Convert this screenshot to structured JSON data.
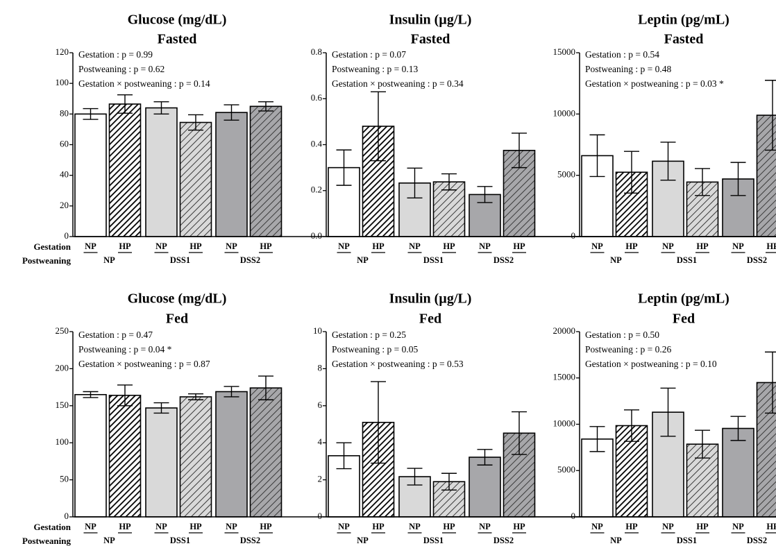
{
  "chart_data": [
    {
      "type": "bar",
      "title": "Glucose (mg/dL)",
      "subtitle": "Fasted",
      "annotations": [
        "Gestation : p = 0.99",
        "Postweaning : p = 0.62",
        "Gestation × postweaning : p = 0.14"
      ],
      "row_labels": [
        "Gestation",
        "Postweaning"
      ],
      "categories": [
        "NP",
        "HP",
        "NP",
        "HP",
        "NP",
        "HP"
      ],
      "groups": [
        "NP",
        "DSS1",
        "DSS2"
      ],
      "values": [
        80,
        86.5,
        84,
        74.5,
        81,
        85
      ],
      "errors": [
        3.5,
        6,
        4,
        5,
        5,
        3
      ],
      "colors": [
        "#ffffff",
        "#000000",
        "#d9d9d9",
        "#d9d9d9",
        "#a7a7aa",
        "#a7a7aa"
      ],
      "hatched": [
        false,
        true,
        false,
        true,
        false,
        true
      ],
      "ylim": [
        0,
        120
      ],
      "yticks": [
        0,
        20,
        40,
        60,
        80,
        100,
        120
      ]
    },
    {
      "type": "bar",
      "title": "Insulin (µg/L)",
      "subtitle": "Fasted",
      "annotations": [
        "Gestation : p = 0.07",
        "Postweaning : p = 0.13",
        "Gestation × postweaning : p = 0.34"
      ],
      "categories": [
        "NP",
        "HP",
        "NP",
        "HP",
        "NP",
        "HP"
      ],
      "groups": [
        "NP",
        "DSS1",
        "DSS2"
      ],
      "values": [
        0.3,
        0.48,
        0.233,
        0.238,
        0.183,
        0.375
      ],
      "errors": [
        0.077,
        0.15,
        0.065,
        0.035,
        0.035,
        0.075
      ],
      "colors": [
        "#ffffff",
        "#000000",
        "#d9d9d9",
        "#d9d9d9",
        "#a7a7aa",
        "#a7a7aa"
      ],
      "hatched": [
        false,
        true,
        false,
        true,
        false,
        true
      ],
      "ylim": [
        0,
        0.8
      ],
      "yticks": [
        {
          "value": 0,
          "label": "0.0"
        },
        0.2,
        0.4,
        0.6,
        0.8
      ]
    },
    {
      "type": "bar",
      "title": "Leptin (pg/mL)",
      "subtitle": "Fasted",
      "annotations": [
        "Gestation : p = 0.54",
        "Postweaning : p = 0.48",
        "Gestation × postweaning : p = 0.03 *"
      ],
      "categories": [
        "NP",
        "HP",
        "NP",
        "HP",
        "NP",
        "HP"
      ],
      "groups": [
        "NP",
        "DSS1",
        "DSS2"
      ],
      "values": [
        6600,
        5250,
        6150,
        4450,
        4700,
        9900
      ],
      "errors": [
        1700,
        1700,
        1550,
        1100,
        1350,
        2850
      ],
      "colors": [
        "#ffffff",
        "#000000",
        "#d9d9d9",
        "#d9d9d9",
        "#a7a7aa",
        "#a7a7aa"
      ],
      "hatched": [
        false,
        true,
        false,
        true,
        false,
        true
      ],
      "ylim": [
        0,
        15000
      ],
      "yticks": [
        0,
        5000,
        10000,
        15000
      ]
    },
    {
      "type": "bar",
      "title": "Glucose (mg/dL)",
      "subtitle": "Fed",
      "annotations": [
        "Gestation : p = 0.47",
        "Postweaning : p = 0.04 *",
        "Gestation × postweaning : p = 0.87"
      ],
      "row_labels": [
        "Gestation",
        "Postweaning"
      ],
      "categories": [
        "NP",
        "HP",
        "NP",
        "HP",
        "NP",
        "HP"
      ],
      "groups": [
        "NP",
        "DSS1",
        "DSS2"
      ],
      "values": [
        165,
        164,
        147,
        162,
        169,
        174
      ],
      "errors": [
        4,
        14,
        7,
        4,
        7,
        16
      ],
      "colors": [
        "#ffffff",
        "#000000",
        "#d9d9d9",
        "#d9d9d9",
        "#a7a7aa",
        "#a7a7aa"
      ],
      "hatched": [
        false,
        true,
        false,
        true,
        false,
        true
      ],
      "ylim": [
        0,
        250
      ],
      "yticks": [
        0,
        50,
        100,
        150,
        200,
        250
      ]
    },
    {
      "type": "bar",
      "title": "Insulin (µg/L)",
      "subtitle": "Fed",
      "annotations": [
        "Gestation : p = 0.25",
        "Postweaning : p = 0.05",
        "Gestation × postweaning : p = 0.53"
      ],
      "categories": [
        "NP",
        "HP",
        "NP",
        "HP",
        "NP",
        "HP"
      ],
      "groups": [
        "NP",
        "DSS1",
        "DSS2"
      ],
      "values": [
        3.3,
        5.1,
        2.17,
        1.9,
        3.22,
        4.52
      ],
      "errors": [
        0.7,
        2.2,
        0.45,
        0.45,
        0.42,
        1.15
      ],
      "colors": [
        "#ffffff",
        "#000000",
        "#d9d9d9",
        "#d9d9d9",
        "#a7a7aa",
        "#a7a7aa"
      ],
      "hatched": [
        false,
        true,
        false,
        true,
        false,
        true
      ],
      "ylim": [
        0,
        10
      ],
      "yticks": [
        0,
        2,
        4,
        6,
        8,
        10
      ]
    },
    {
      "type": "bar",
      "title": "Leptin (pg/mL)",
      "subtitle": "Fed",
      "annotations": [
        "Gestation : p = 0.50",
        "Postweaning : p = 0.26",
        "Gestation × postweaning : p = 0.10"
      ],
      "categories": [
        "NP",
        "HP",
        "NP",
        "HP",
        "NP",
        "HP"
      ],
      "groups": [
        "NP",
        "DSS1",
        "DSS2"
      ],
      "values": [
        8400,
        9850,
        11300,
        7850,
        9550,
        14500
      ],
      "errors": [
        1350,
        1700,
        2600,
        1500,
        1300,
        3300
      ],
      "colors": [
        "#ffffff",
        "#000000",
        "#d9d9d9",
        "#d9d9d9",
        "#a7a7aa",
        "#a7a7aa"
      ],
      "hatched": [
        false,
        true,
        false,
        true,
        false,
        true
      ],
      "ylim": [
        0,
        20000
      ],
      "yticks": [
        0,
        5000,
        10000,
        15000,
        20000
      ]
    }
  ]
}
